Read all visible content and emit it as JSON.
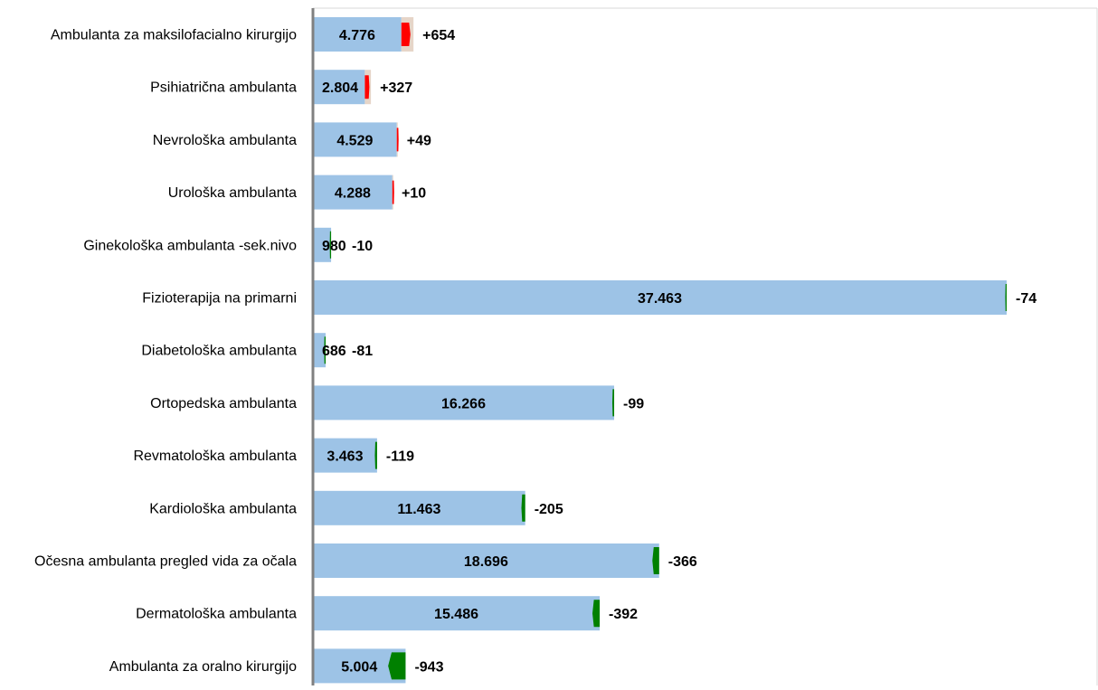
{
  "chart_data": {
    "type": "bar",
    "orientation": "horizontal",
    "categories": [
      "Ambulanta za maksilofacialno kirurgijo",
      "Psihiatrična ambulanta",
      "Nevrološka ambulanta",
      "Urološka ambulanta",
      "Ginekološka ambulanta -sek.nivo",
      "Fizioterapija na primarni",
      "Diabetološka ambulanta",
      "Ortopedska ambulanta",
      "Revmatološka ambulanta",
      "Kardiološka ambulanta",
      "Očesna ambulanta  pregled vida za očala",
      "Dermatološka ambulanta",
      "Ambulanta za oralno kirurgijo"
    ],
    "values": [
      4776,
      2804,
      4529,
      4288,
      980,
      37463,
      686,
      16266,
      3463,
      11463,
      18696,
      15486,
      5004
    ],
    "value_labels": [
      "4.776",
      "2.804",
      "4.529",
      "4.288",
      "980",
      "37.463",
      "686",
      "16.266",
      "3.463",
      "11.463",
      "18.696",
      "15.486",
      "5.004"
    ],
    "changes": [
      654,
      327,
      49,
      10,
      -10,
      -74,
      -81,
      -99,
      -119,
      -205,
      -366,
      -392,
      -943
    ],
    "change_labels": [
      "+654",
      "+327",
      "+49",
      "+10",
      "-10",
      "-74",
      "-81",
      "-99",
      "-119",
      "-205",
      "-366",
      "-392",
      "-943"
    ],
    "xlim": [
      0,
      37463
    ],
    "grid": false,
    "legend": "none",
    "colors": {
      "bar": "#9dc3e6",
      "increase": "#ff0000",
      "increase_back": "#e6d5c8",
      "decrease": "#008000",
      "axis": "#808080",
      "frame": "#d9d9d9"
    }
  }
}
